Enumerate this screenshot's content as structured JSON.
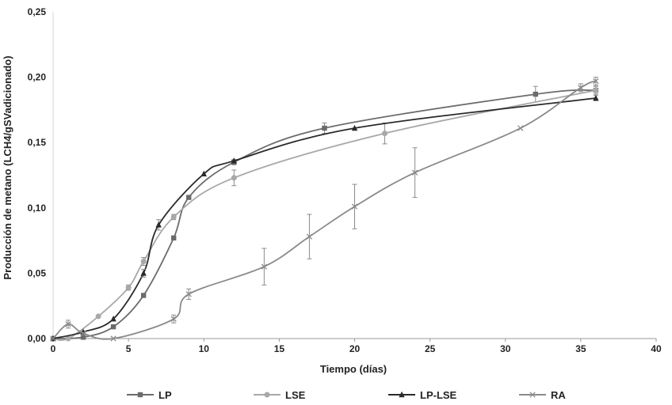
{
  "chart_data": {
    "type": "line",
    "xlabel": "Tiempo (días)",
    "ylabel": "Producción de metano (LCH4/gSVadicionado)",
    "xlim": [
      0,
      40
    ],
    "ylim": [
      0,
      0.25
    ],
    "x_ticks": [
      "0",
      "5",
      "10",
      "15",
      "20",
      "25",
      "30",
      "35",
      "40"
    ],
    "y_ticks": [
      "0,00",
      "0,05",
      "0,10",
      "0,15",
      "0,20",
      "0,25"
    ],
    "grid": false,
    "legend_position": "bottom",
    "series": [
      {
        "name": "LP",
        "color": "#6b6b6b",
        "marker": "square",
        "x": [
          0,
          2,
          4,
          6,
          8,
          9,
          12,
          18,
          32,
          36
        ],
        "y": [
          0,
          0.001,
          0.009,
          0.033,
          0.077,
          0.108,
          0.135,
          0.161,
          0.187,
          0.19
        ],
        "err": [
          0,
          0,
          0,
          0,
          0,
          0,
          0.002,
          0.004,
          0.006,
          0.003
        ]
      },
      {
        "name": "LSE",
        "color": "#a8a8a8",
        "marker": "circle",
        "x": [
          0,
          1,
          3,
          5,
          6,
          8,
          12,
          22,
          36
        ],
        "y": [
          0,
          0,
          0.017,
          0.039,
          0.059,
          0.093,
          0.123,
          0.157,
          0.19
        ],
        "err": [
          0,
          0,
          0,
          0.002,
          0.003,
          0.002,
          0.006,
          0.008,
          0.003
        ]
      },
      {
        "name": "LP-LSE",
        "color": "#2a2a2a",
        "marker": "triangle",
        "x": [
          0,
          2,
          4,
          6,
          7,
          10,
          12,
          20,
          36
        ],
        "y": [
          0,
          0.005,
          0.015,
          0.05,
          0.087,
          0.126,
          0.136,
          0.161,
          0.184
        ],
        "err": [
          0,
          0,
          0,
          0.003,
          0.004,
          0,
          0,
          0,
          0.002
        ]
      },
      {
        "name": "RA",
        "color": "#8a8a8a",
        "marker": "x",
        "x": [
          0,
          1,
          2,
          4,
          8,
          9,
          14,
          17,
          20,
          24,
          31,
          35,
          36
        ],
        "y": [
          0,
          0.011,
          0.004,
          0,
          0.015,
          0.034,
          0.055,
          0.078,
          0.101,
          0.127,
          0.161,
          0.192,
          0.197
        ],
        "err": [
          0,
          0.003,
          0,
          0,
          0.003,
          0.004,
          0.014,
          0.017,
          0.017,
          0.019,
          0,
          0.003,
          0.003
        ]
      }
    ]
  }
}
